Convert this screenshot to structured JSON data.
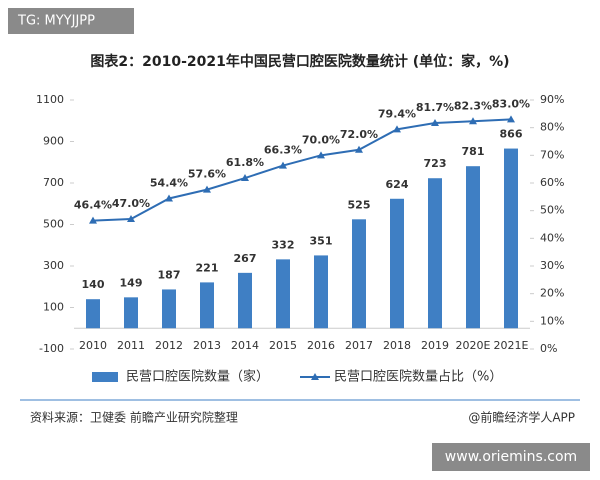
{
  "header_tag": "TG: MYYJJPP",
  "chart_data": {
    "type": "bar-line",
    "title": "图表2：2010-2021年中国民营口腔医院数量统计 (单位：家，%)",
    "categories": [
      "2010",
      "2011",
      "2012",
      "2013",
      "2014",
      "2015",
      "2016",
      "2017",
      "2018",
      "2019",
      "2020E",
      "2021E"
    ],
    "series": [
      {
        "name": "民营口腔医院数量（家）",
        "type": "bar",
        "color": "#3f7fc4",
        "values": [
          140,
          149,
          187,
          221,
          267,
          332,
          351,
          525,
          624,
          723,
          781,
          866
        ]
      },
      {
        "name": "民营口腔医院数量占比（%）",
        "type": "line",
        "axis": "y2",
        "color": "#2e6db4",
        "values": [
          46.4,
          47.0,
          54.4,
          57.6,
          61.8,
          66.3,
          70.0,
          72.0,
          79.4,
          81.7,
          82.3,
          83.0
        ],
        "value_labels": [
          "46.4%",
          "47.0%",
          "54.4%",
          "57.6%",
          "61.8%",
          "66.3%",
          "70.0%",
          "72.0%",
          "79.4%",
          "81.7%",
          "82.3%",
          "83.0%"
        ]
      }
    ],
    "ylim": [
      -100,
      1100
    ],
    "yticks": [
      -100,
      100,
      300,
      500,
      700,
      900,
      1100
    ],
    "y2lim": [
      0,
      90
    ],
    "y2ticks": [
      {
        "value": 0,
        "label": "0%"
      },
      {
        "value": 10,
        "label": "10%"
      },
      {
        "value": 20,
        "label": "20%"
      },
      {
        "value": 30,
        "label": "30%"
      },
      {
        "value": 40,
        "label": "40%"
      },
      {
        "value": 50,
        "label": "50%"
      },
      {
        "value": 60,
        "label": "60%"
      },
      {
        "value": 70,
        "label": "70%"
      },
      {
        "value": 80,
        "label": "80%"
      },
      {
        "value": 90,
        "label": "90%"
      }
    ],
    "grid": false
  },
  "source": "资料来源：卫健委 前瞻产业研究院整理",
  "credit": "@前瞻经济学人APP",
  "website": "www.oriemins.com"
}
